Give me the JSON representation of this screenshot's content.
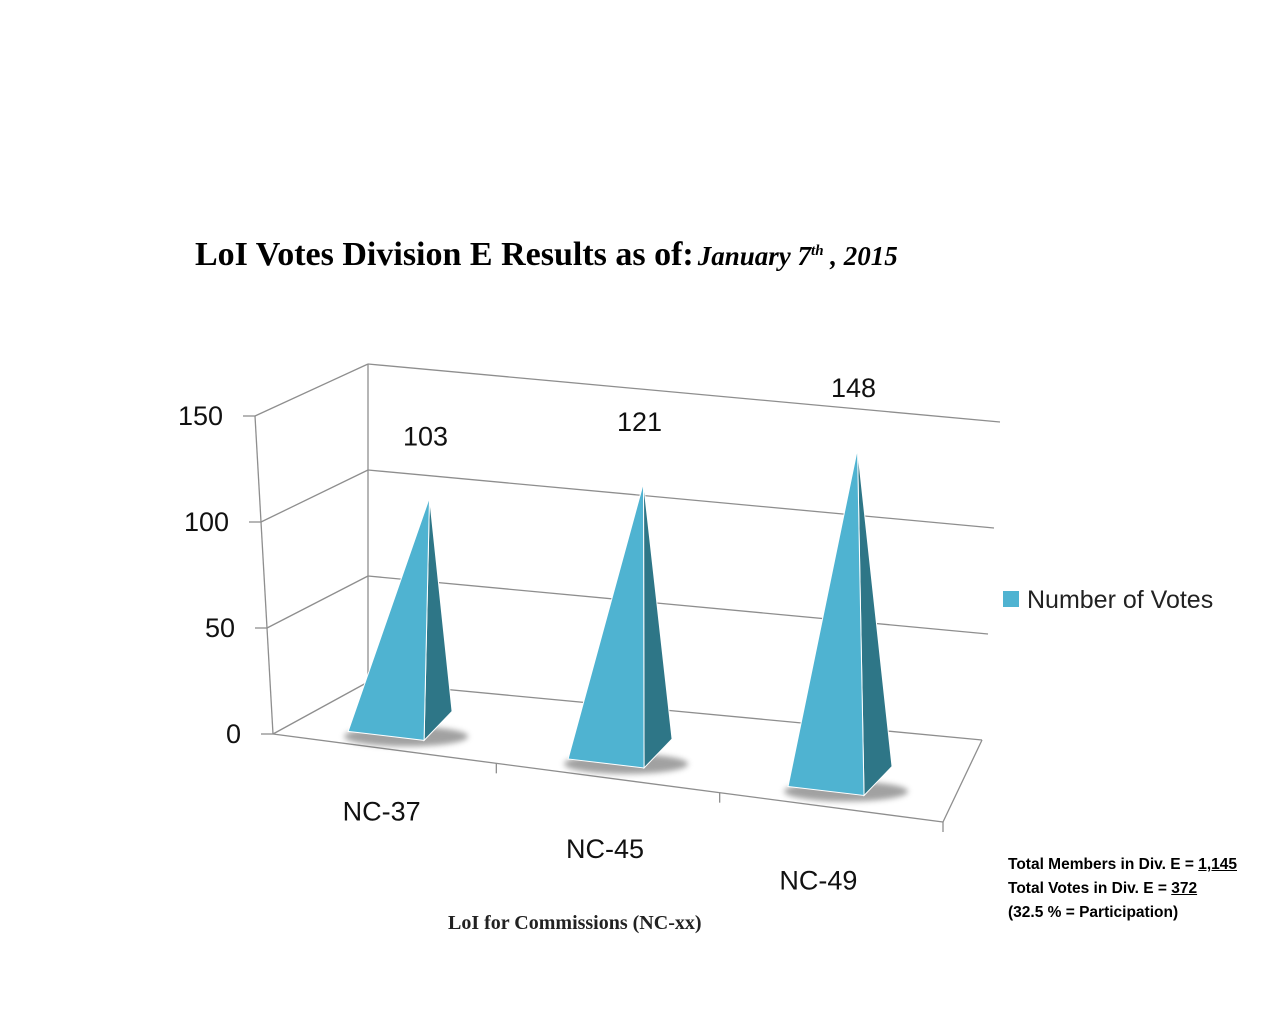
{
  "chart_data": {
    "type": "bar",
    "title": "LoI Votes Division E Results as of:",
    "date": {
      "prefix": "January 7",
      "superscript": "th",
      "suffix": ", 2015"
    },
    "xlabel": "LoI for Commissions (NC-xx)",
    "ylabel": "",
    "categories": [
      "NC-37",
      "NC-45",
      "NC-49"
    ],
    "series": [
      {
        "name": "Number of Votes",
        "values": [
          103,
          121,
          148
        ]
      }
    ],
    "ylim": [
      0,
      150
    ],
    "yticks": [
      0,
      50,
      100,
      150
    ],
    "bar_shape": "3d-pyramid",
    "grid": true,
    "legend_position": "right",
    "colors": {
      "front": "#4fb3d1",
      "side": "#2e7687"
    }
  },
  "totals": {
    "members_label": "Total Members in Div. E = ",
    "members_value": "1,145",
    "votes_label": "Total Votes in Div. E = ",
    "votes_value": "372",
    "participation": "(32.5 % = Participation)"
  }
}
